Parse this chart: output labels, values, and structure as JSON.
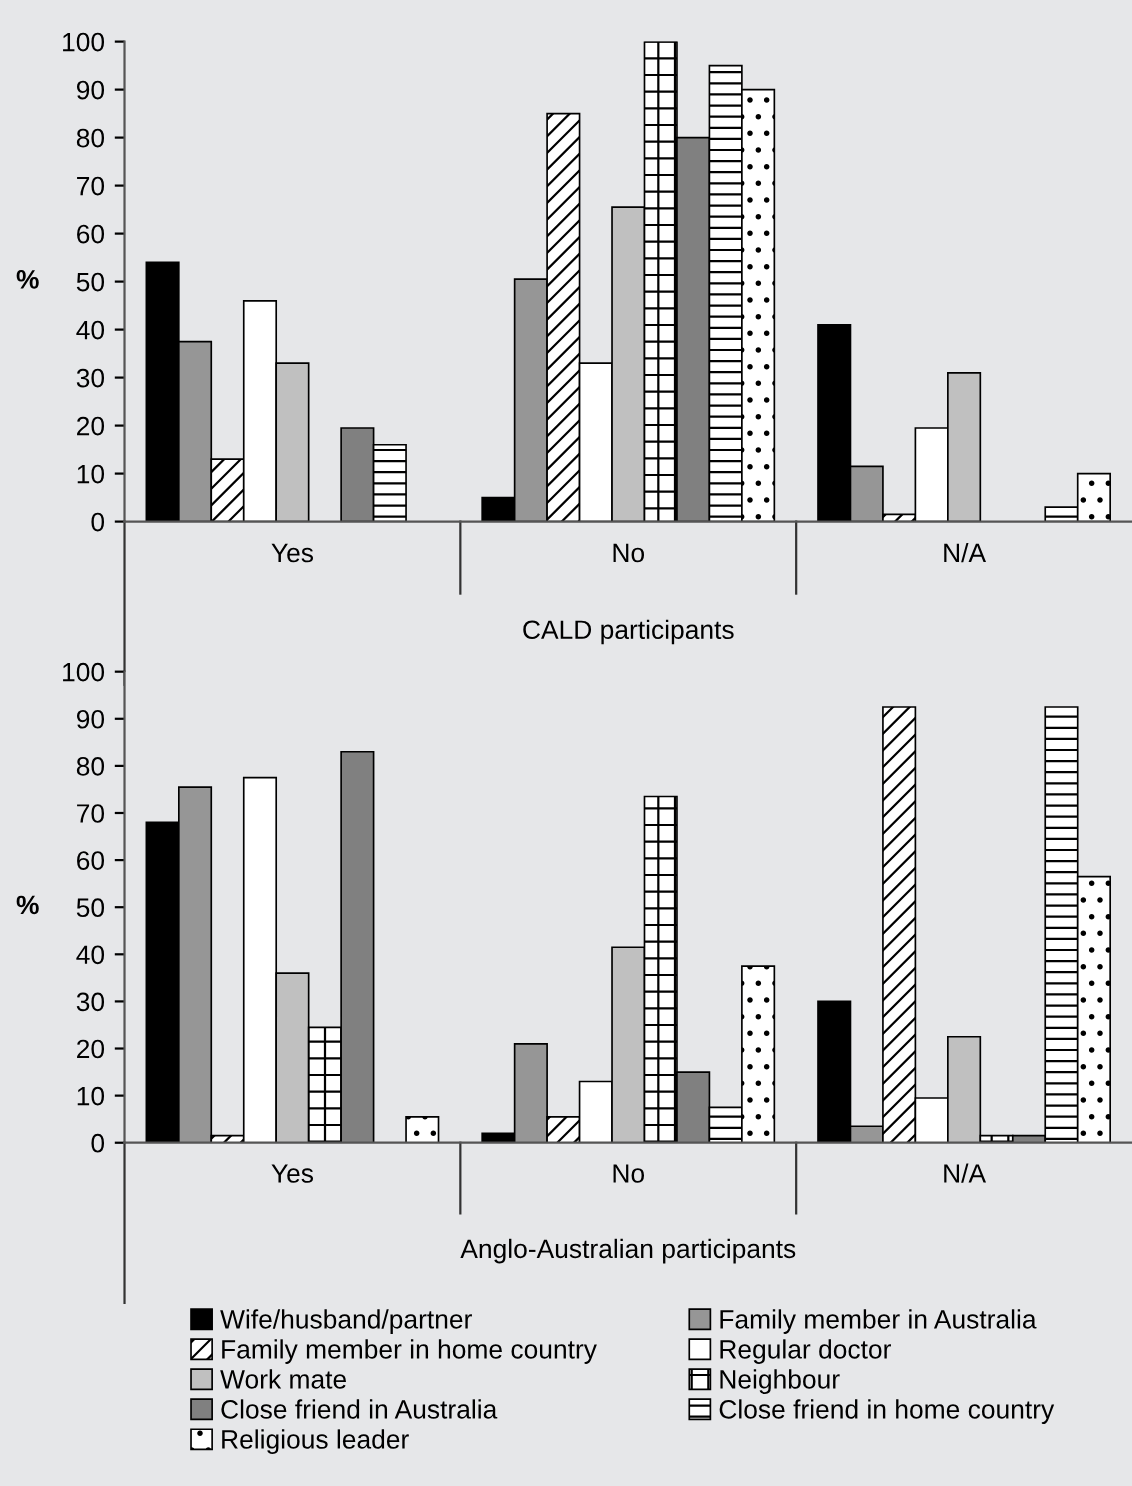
{
  "chart_data": [
    {
      "type": "bar",
      "xlabel": "CALD participants",
      "ylabel": "%",
      "categories": [
        "Yes",
        "No",
        "N/A"
      ],
      "ylim": [
        0,
        100
      ],
      "yticks": [
        0,
        10,
        20,
        30,
        40,
        50,
        60,
        70,
        80,
        90,
        100
      ],
      "grid": false,
      "series": [
        {
          "color": "#000000",
          "values": [
            54,
            5,
            41
          ]
        },
        {
          "color": "#969696",
          "values": [
            37.5,
            50.5,
            11.5
          ]
        },
        {
          "color": "#000000",
          "values": [
            13,
            85,
            1.5
          ]
        },
        {
          "color": "#ffffff",
          "values": [
            46,
            33,
            19.5
          ]
        },
        {
          "color": "#c0c0c0",
          "values": [
            33,
            65.5,
            31
          ]
        },
        {
          "color": "#000000",
          "values": [
            null,
            100,
            null
          ]
        },
        {
          "color": "#808080",
          "values": [
            19.5,
            80,
            null
          ]
        },
        {
          "color": "#000000",
          "values": [
            16,
            95,
            3
          ]
        },
        {
          "color": "#000000",
          "values": [
            null,
            90,
            10
          ]
        }
      ]
    },
    {
      "type": "bar",
      "xlabel": "Anglo-Australian participants",
      "ylabel": "%",
      "categories": [
        "Yes",
        "No",
        "N/A"
      ],
      "ylim": [
        0,
        100
      ],
      "yticks": [
        0,
        10,
        20,
        30,
        40,
        50,
        60,
        70,
        80,
        90,
        100
      ],
      "grid": false,
      "legend": "bottom",
      "series": [
        {
          "name": "Wife/husband/partner",
          "color": "#000000",
          "values": [
            68,
            2,
            30
          ]
        },
        {
          "name": "Family member in Australia",
          "color": "#969696",
          "values": [
            75.5,
            21,
            3.5
          ]
        },
        {
          "name": "Family member in home country",
          "color": "#000000",
          "values": [
            1.5,
            5.5,
            92.5
          ]
        },
        {
          "name": "Regular doctor",
          "color": "#ffffff",
          "values": [
            77.5,
            13,
            9.5
          ]
        },
        {
          "name": "Work mate",
          "color": "#c0c0c0",
          "values": [
            36,
            41.5,
            22.5
          ]
        },
        {
          "name": "Neighbour",
          "color": "#000000",
          "values": [
            24.5,
            73.5,
            1.5
          ]
        },
        {
          "name": "Close friend in Australia",
          "color": "#808080",
          "values": [
            83,
            15,
            1.5
          ]
        },
        {
          "name": "Close friend in home country",
          "color": "#000000",
          "values": [
            null,
            7.5,
            92.5
          ]
        },
        {
          "name": "Religious leader",
          "color": "#000000",
          "values": [
            5.5,
            37.5,
            56.5
          ]
        }
      ]
    }
  ]
}
